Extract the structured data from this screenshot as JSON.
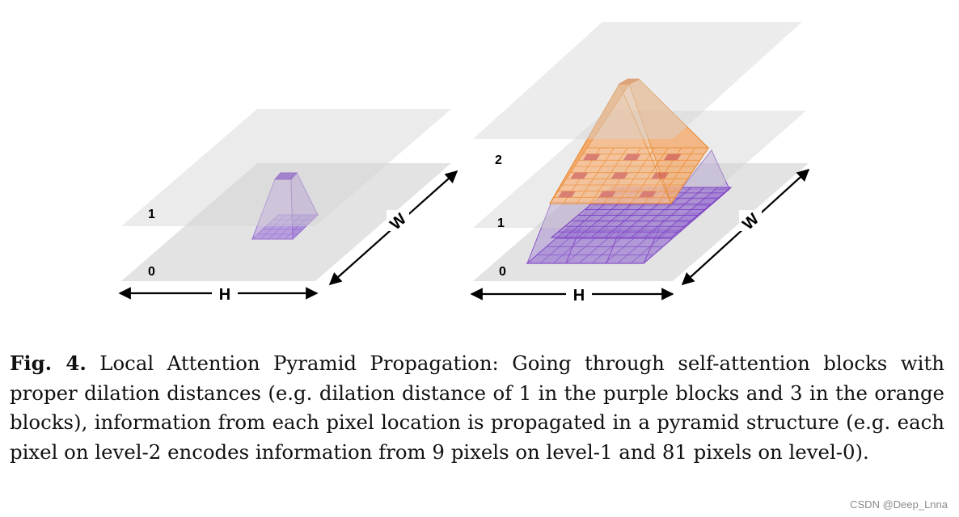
{
  "diagram": {
    "left": {
      "level_labels": [
        "1",
        "0"
      ],
      "axis_h": "H",
      "axis_w": "W"
    },
    "right": {
      "level_labels": [
        "2",
        "1",
        "0"
      ],
      "axis_h": "H",
      "axis_w": "W"
    },
    "colors": {
      "plane": "#d9d9d9",
      "purple_fill": "#9e7fd0",
      "purple_line": "#7a3bc2",
      "orange_fill": "#f39a4c",
      "orange_line": "#e87a24",
      "red_cell": "#c45a6a"
    }
  },
  "caption": {
    "label": "Fig. 4.",
    "text": "Local Attention Pyramid Propagation: Going through self-attention blocks with proper dilation distances (e.g. dilation distance of 1 in the purple blocks and 3 in the orange blocks), information from each pixel location is propagated in a pyramid structure (e.g. each pixel on level-2 encodes information from 9 pixels on level-1 and 81 pixels on level-0)."
  },
  "watermark": "CSDN @Deep_Lnna"
}
